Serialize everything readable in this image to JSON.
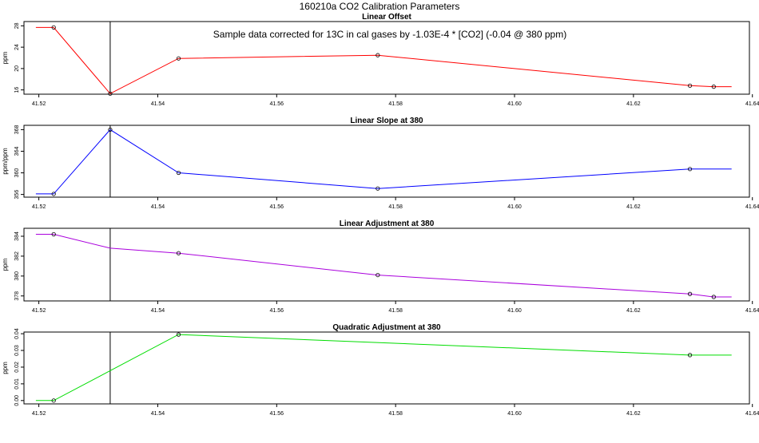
{
  "page": {
    "title": "160210a   CO2 Calibration Parameters",
    "note": "Sample data corrected for 13C in cal gases by -1.03E-4 * [CO2] (-0.04 @ 380 ppm)"
  },
  "chart_data": [
    {
      "type": "line",
      "title": "Linear Offset",
      "xlabel": "",
      "ylabel": "ppm",
      "xlim": [
        41.5175,
        41.6395
      ],
      "ylim": [
        15.2,
        28.8
      ],
      "xticks": [
        "41.52",
        "41.54",
        "41.56",
        "41.58",
        "41.60",
        "41.62",
        "41.64"
      ],
      "yticks": [
        "16",
        "20",
        "24",
        "28"
      ],
      "color": "#ff0000",
      "vline_x": 41.532,
      "series": [
        {
          "x": [
            41.5195,
            41.5225,
            41.532,
            41.5435,
            41.577,
            41.6295,
            41.6335,
            41.6365
          ],
          "y": [
            27.7,
            27.7,
            15.3,
            21.9,
            22.5,
            16.8,
            16.6,
            16.6
          ],
          "markers": [
            false,
            true,
            true,
            true,
            true,
            true,
            true,
            false
          ]
        }
      ]
    },
    {
      "type": "line",
      "title": "Linear Slope at 380",
      "xlabel": "",
      "ylabel": "ppm/ppm",
      "xlim": [
        41.5175,
        41.6395
      ],
      "ylim": [
        355.5,
        368.8
      ],
      "xticks": [
        "41.52",
        "41.54",
        "41.56",
        "41.58",
        "41.60",
        "41.62",
        "41.64"
      ],
      "yticks": [
        "356",
        "360",
        "364",
        "368"
      ],
      "color": "#0000ff",
      "vline_x": 41.532,
      "series": [
        {
          "x": [
            41.5195,
            41.5225,
            41.532,
            41.5435,
            41.577,
            41.6295,
            41.6365
          ],
          "y": [
            356.1,
            356.1,
            368.0,
            360.0,
            357.1,
            360.7,
            360.7
          ],
          "markers": [
            false,
            true,
            true,
            true,
            true,
            true,
            false
          ]
        }
      ]
    },
    {
      "type": "line",
      "title": "Linear Adjustment at 380",
      "xlabel": "",
      "ylabel": "ppm",
      "xlim": [
        41.5175,
        41.6395
      ],
      "ylim": [
        377.5,
        384.8
      ],
      "xticks": [
        "41.52",
        "41.54",
        "41.56",
        "41.58",
        "41.60",
        "41.62",
        "41.64"
      ],
      "yticks": [
        "378",
        "380",
        "382",
        "384"
      ],
      "color": "#aa00dd",
      "vline_x": 41.532,
      "series": [
        {
          "x": [
            41.5195,
            41.5225,
            41.532,
            41.5435,
            41.577,
            41.6295,
            41.6335,
            41.6365
          ],
          "y": [
            384.2,
            384.2,
            382.8,
            382.3,
            380.1,
            378.2,
            377.9,
            377.9
          ],
          "markers": [
            false,
            true,
            false,
            true,
            true,
            true,
            true,
            false
          ]
        }
      ]
    },
    {
      "type": "line",
      "title": "Quadratic Adjustment at 380",
      "xlabel": "",
      "ylabel": "ppm",
      "xlim": [
        41.5175,
        41.6395
      ],
      "ylim": [
        -0.002,
        0.041
      ],
      "xticks": [
        "41.52",
        "41.54",
        "41.56",
        "41.58",
        "41.60",
        "41.62",
        "41.64"
      ],
      "yticks": [
        "0.00",
        "0.01",
        "0.02",
        "0.03",
        "0.04"
      ],
      "color": "#00dd00",
      "vline_x": 41.532,
      "series": [
        {
          "x": [
            41.5195,
            41.5225,
            41.5435,
            41.6295,
            41.6365
          ],
          "y": [
            0.0,
            0.0,
            0.0395,
            0.0272,
            0.0272
          ],
          "markers": [
            false,
            true,
            true,
            true,
            false
          ]
        }
      ]
    }
  ]
}
